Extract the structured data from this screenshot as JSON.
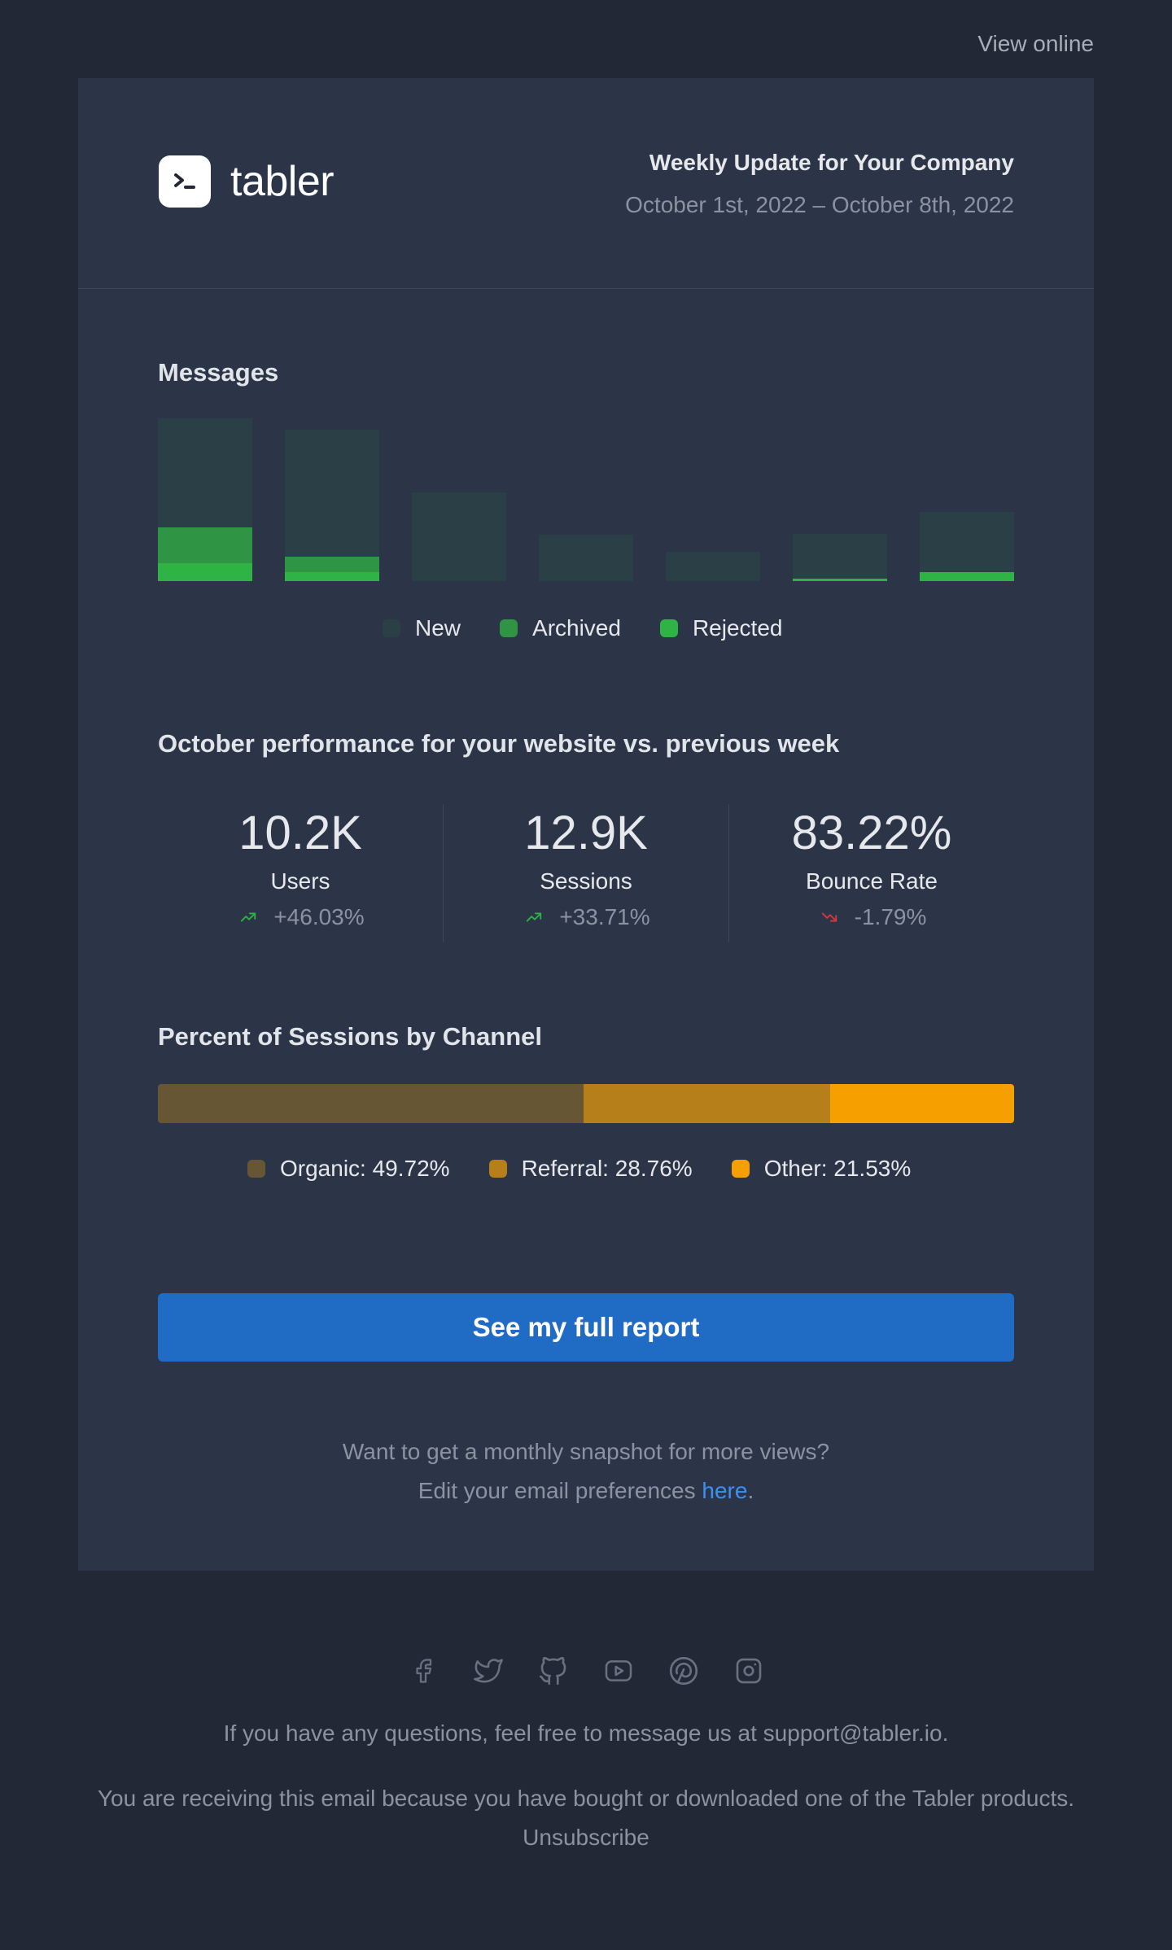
{
  "top": {
    "view_online": "View online"
  },
  "header": {
    "logo_text": "tabler",
    "title": "Weekly Update for Your Company",
    "date_range": "October 1st, 2022 – October 8th, 2022"
  },
  "messages": {
    "title": "Messages",
    "legend": [
      {
        "label": "New",
        "color": "#2b3f47"
      },
      {
        "label": "Archived",
        "color": "#2f9444"
      },
      {
        "label": "Rejected",
        "color": "#2fb344"
      }
    ]
  },
  "chart_data": {
    "type": "bar",
    "stacked": true,
    "categories": [
      "",
      "",
      "",
      "",
      "",
      "",
      ""
    ],
    "series": [
      {
        "name": "Rejected",
        "values": [
          22,
          11,
          0,
          0,
          0,
          3,
          11
        ]
      },
      {
        "name": "Archived",
        "values": [
          44,
          19,
          0,
          0,
          0,
          0,
          0
        ]
      },
      {
        "name": "New",
        "values": [
          134,
          156,
          109,
          57,
          36,
          55,
          74
        ]
      }
    ],
    "title": "Messages",
    "legend": [
      "New",
      "Archived",
      "Rejected"
    ],
    "legend_position": "bottom-center",
    "grid": false,
    "ylim": [
      0,
      200
    ]
  },
  "performance": {
    "title": "October performance for your website vs. previous week",
    "stats": [
      {
        "value": "10.2K",
        "label": "Users",
        "change": "+46.03%",
        "trend": "up"
      },
      {
        "value": "12.9K",
        "label": "Sessions",
        "change": "+33.71%",
        "trend": "up"
      },
      {
        "value": "83.22%",
        "label": "Bounce Rate",
        "change": "-1.79%",
        "trend": "down"
      }
    ],
    "trend_colors": {
      "up": "#2fb344",
      "down": "#d63939"
    }
  },
  "channels": {
    "title": "Percent of Sessions by Channel",
    "items": [
      {
        "label": "Organic: 49.72%",
        "percent": 49.72,
        "color": "#675633"
      },
      {
        "label": "Referral: 28.76%",
        "percent": 28.76,
        "color": "#b67f1a"
      },
      {
        "label": "Other: 21.53%",
        "percent": 21.53,
        "color": "#f59f00"
      }
    ]
  },
  "cta": {
    "label": "See my full report"
  },
  "prefs": {
    "line1": "Want to get a monthly snapshot for more views?",
    "line2": "Edit your email preferences ",
    "link": "here",
    "after": "."
  },
  "footer": {
    "socials": [
      "facebook-icon",
      "twitter-icon",
      "github-icon",
      "youtube-icon",
      "pinterest-icon",
      "instagram-icon"
    ],
    "contact": "If you have any questions, feel free to message us at support@tabler.io.",
    "receiving": "You are receiving this email because you have bought or downloaded one of the Tabler products.",
    "unsubscribe": "Unsubscribe"
  },
  "colors": {
    "background": "#222836",
    "card": "#2c3548",
    "accent": "#206bc4"
  }
}
